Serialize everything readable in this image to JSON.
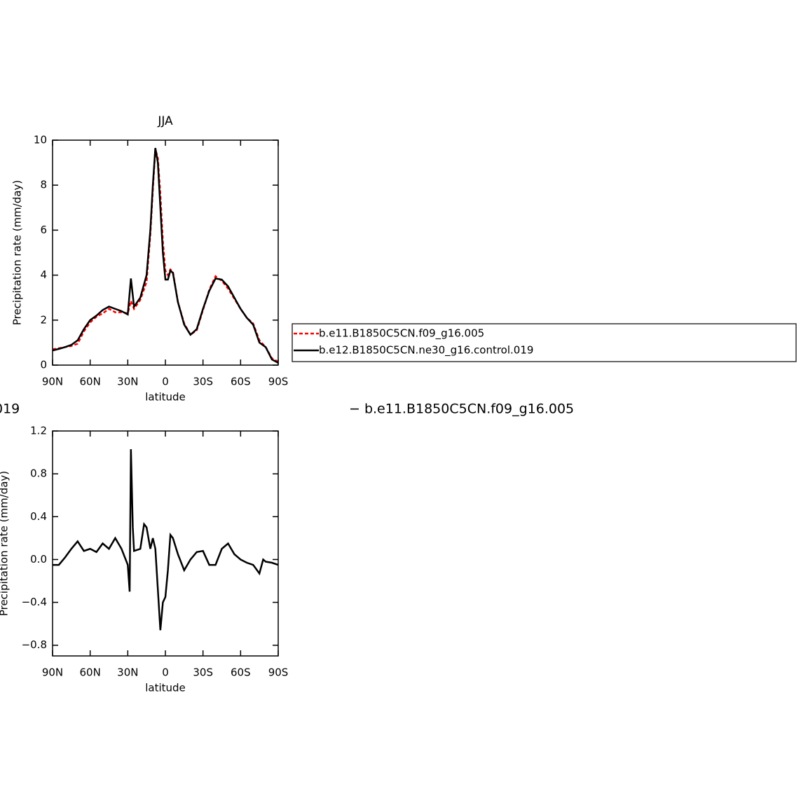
{
  "chart_data": [
    {
      "type": "line",
      "title": "JJA",
      "xlabel": "latitude",
      "ylabel": "Precipitation rate (mm/day)",
      "x": [
        90,
        85,
        80,
        75,
        70,
        65,
        60,
        55,
        50,
        45,
        40,
        35,
        30,
        27.5,
        25,
        20,
        15,
        12,
        10,
        8,
        6,
        4,
        2,
        0,
        -2,
        -4,
        -6,
        -10,
        -15,
        -20,
        -25,
        -30,
        -35,
        -40,
        -45,
        -50,
        -55,
        -60,
        -65,
        -70,
        -75,
        -80,
        -85,
        -90
      ],
      "series": [
        {
          "name": "b.e11.B1850C5CN.f09_g16.005",
          "color": "#ff0000",
          "dash": true,
          "values": [
            0.7,
            0.75,
            0.8,
            0.85,
            0.95,
            1.5,
            1.9,
            2.15,
            2.3,
            2.5,
            2.35,
            2.35,
            2.3,
            2.85,
            2.5,
            2.9,
            3.7,
            5.8,
            7.8,
            9.6,
            9.2,
            7.6,
            5.5,
            4.2,
            4.0,
            4.25,
            4.15,
            2.8,
            1.85,
            1.35,
            1.55,
            2.45,
            3.35,
            3.95,
            3.75,
            3.4,
            2.95,
            2.5,
            2.1,
            1.85,
            1.1,
            0.8,
            0.3,
            0.15
          ]
        },
        {
          "name": "b.e12.B1850C5CN.ne30_g16.control.019",
          "color": "#000000",
          "dash": false,
          "values": [
            0.65,
            0.72,
            0.8,
            0.9,
            1.1,
            1.6,
            2.0,
            2.2,
            2.45,
            2.6,
            2.5,
            2.4,
            2.25,
            3.85,
            2.6,
            3.0,
            4.0,
            6.0,
            8.0,
            9.65,
            9.0,
            7.0,
            5.0,
            3.8,
            3.8,
            4.2,
            4.1,
            2.8,
            1.8,
            1.35,
            1.6,
            2.5,
            3.3,
            3.85,
            3.8,
            3.5,
            3.0,
            2.5,
            2.1,
            1.8,
            1.0,
            0.8,
            0.25,
            0.1
          ]
        }
      ],
      "xlim": [
        90,
        -90
      ],
      "xticks": [
        {
          "value": 90,
          "label": "90N"
        },
        {
          "value": 60,
          "label": "60N"
        },
        {
          "value": 30,
          "label": "30N"
        },
        0,
        {
          "value": -30,
          "label": "30S"
        },
        {
          "value": -60,
          "label": "60S"
        },
        {
          "value": -90,
          "label": "90S"
        }
      ],
      "ylim": [
        0,
        10
      ],
      "yticks": [
        0,
        2,
        4,
        6,
        8,
        10
      ],
      "legend": "right"
    },
    {
      "type": "line",
      "title_fragments": [
        "019",
        "− b.e11.B1850C5CN.f09_g16.005"
      ],
      "xlabel": "latitude",
      "ylabel": "Precipitation rate (mm/day)",
      "x": [
        90,
        85,
        80,
        75,
        70,
        65,
        60,
        55,
        50,
        45,
        40,
        35,
        30,
        28.5,
        27.5,
        26,
        25,
        20,
        17,
        15,
        12,
        10,
        8,
        4,
        2,
        0,
        -2,
        -4,
        -6,
        -10,
        -15,
        -20,
        -25,
        -30,
        -35,
        -40,
        -45,
        -50,
        -55,
        -60,
        -65,
        -70,
        -75,
        -78,
        -80,
        -85,
        -90
      ],
      "series": [
        {
          "color": "#000000",
          "dash": false,
          "values": [
            -0.05,
            -0.05,
            0.02,
            0.1,
            0.17,
            0.08,
            0.1,
            0.07,
            0.15,
            0.1,
            0.2,
            0.1,
            -0.05,
            -0.3,
            1.03,
            0.3,
            0.08,
            0.1,
            0.33,
            0.3,
            0.1,
            0.2,
            0.1,
            -0.66,
            -0.4,
            -0.35,
            -0.1,
            0.23,
            0.2,
            0.05,
            -0.1,
            0.0,
            0.07,
            0.08,
            -0.05,
            -0.05,
            0.1,
            0.15,
            0.05,
            0.0,
            -0.03,
            -0.05,
            -0.13,
            0.0,
            -0.02,
            -0.03,
            -0.05
          ]
        }
      ],
      "xlim": [
        90,
        -90
      ],
      "xticks": [
        {
          "value": 90,
          "label": "90N"
        },
        {
          "value": 60,
          "label": "60N"
        },
        {
          "value": 30,
          "label": "30N"
        },
        0,
        {
          "value": -30,
          "label": "30S"
        },
        {
          "value": -60,
          "label": "60S"
        },
        {
          "value": -90,
          "label": "90S"
        }
      ],
      "ylim": [
        -0.9,
        1.2
      ],
      "yticks": [
        {
          "value": -0.8,
          "label": "−0.8"
        },
        {
          "value": -0.4,
          "label": "−0.4"
        },
        {
          "value": 0,
          "label": "0.0"
        },
        0.4,
        0.8,
        1.2
      ]
    }
  ]
}
